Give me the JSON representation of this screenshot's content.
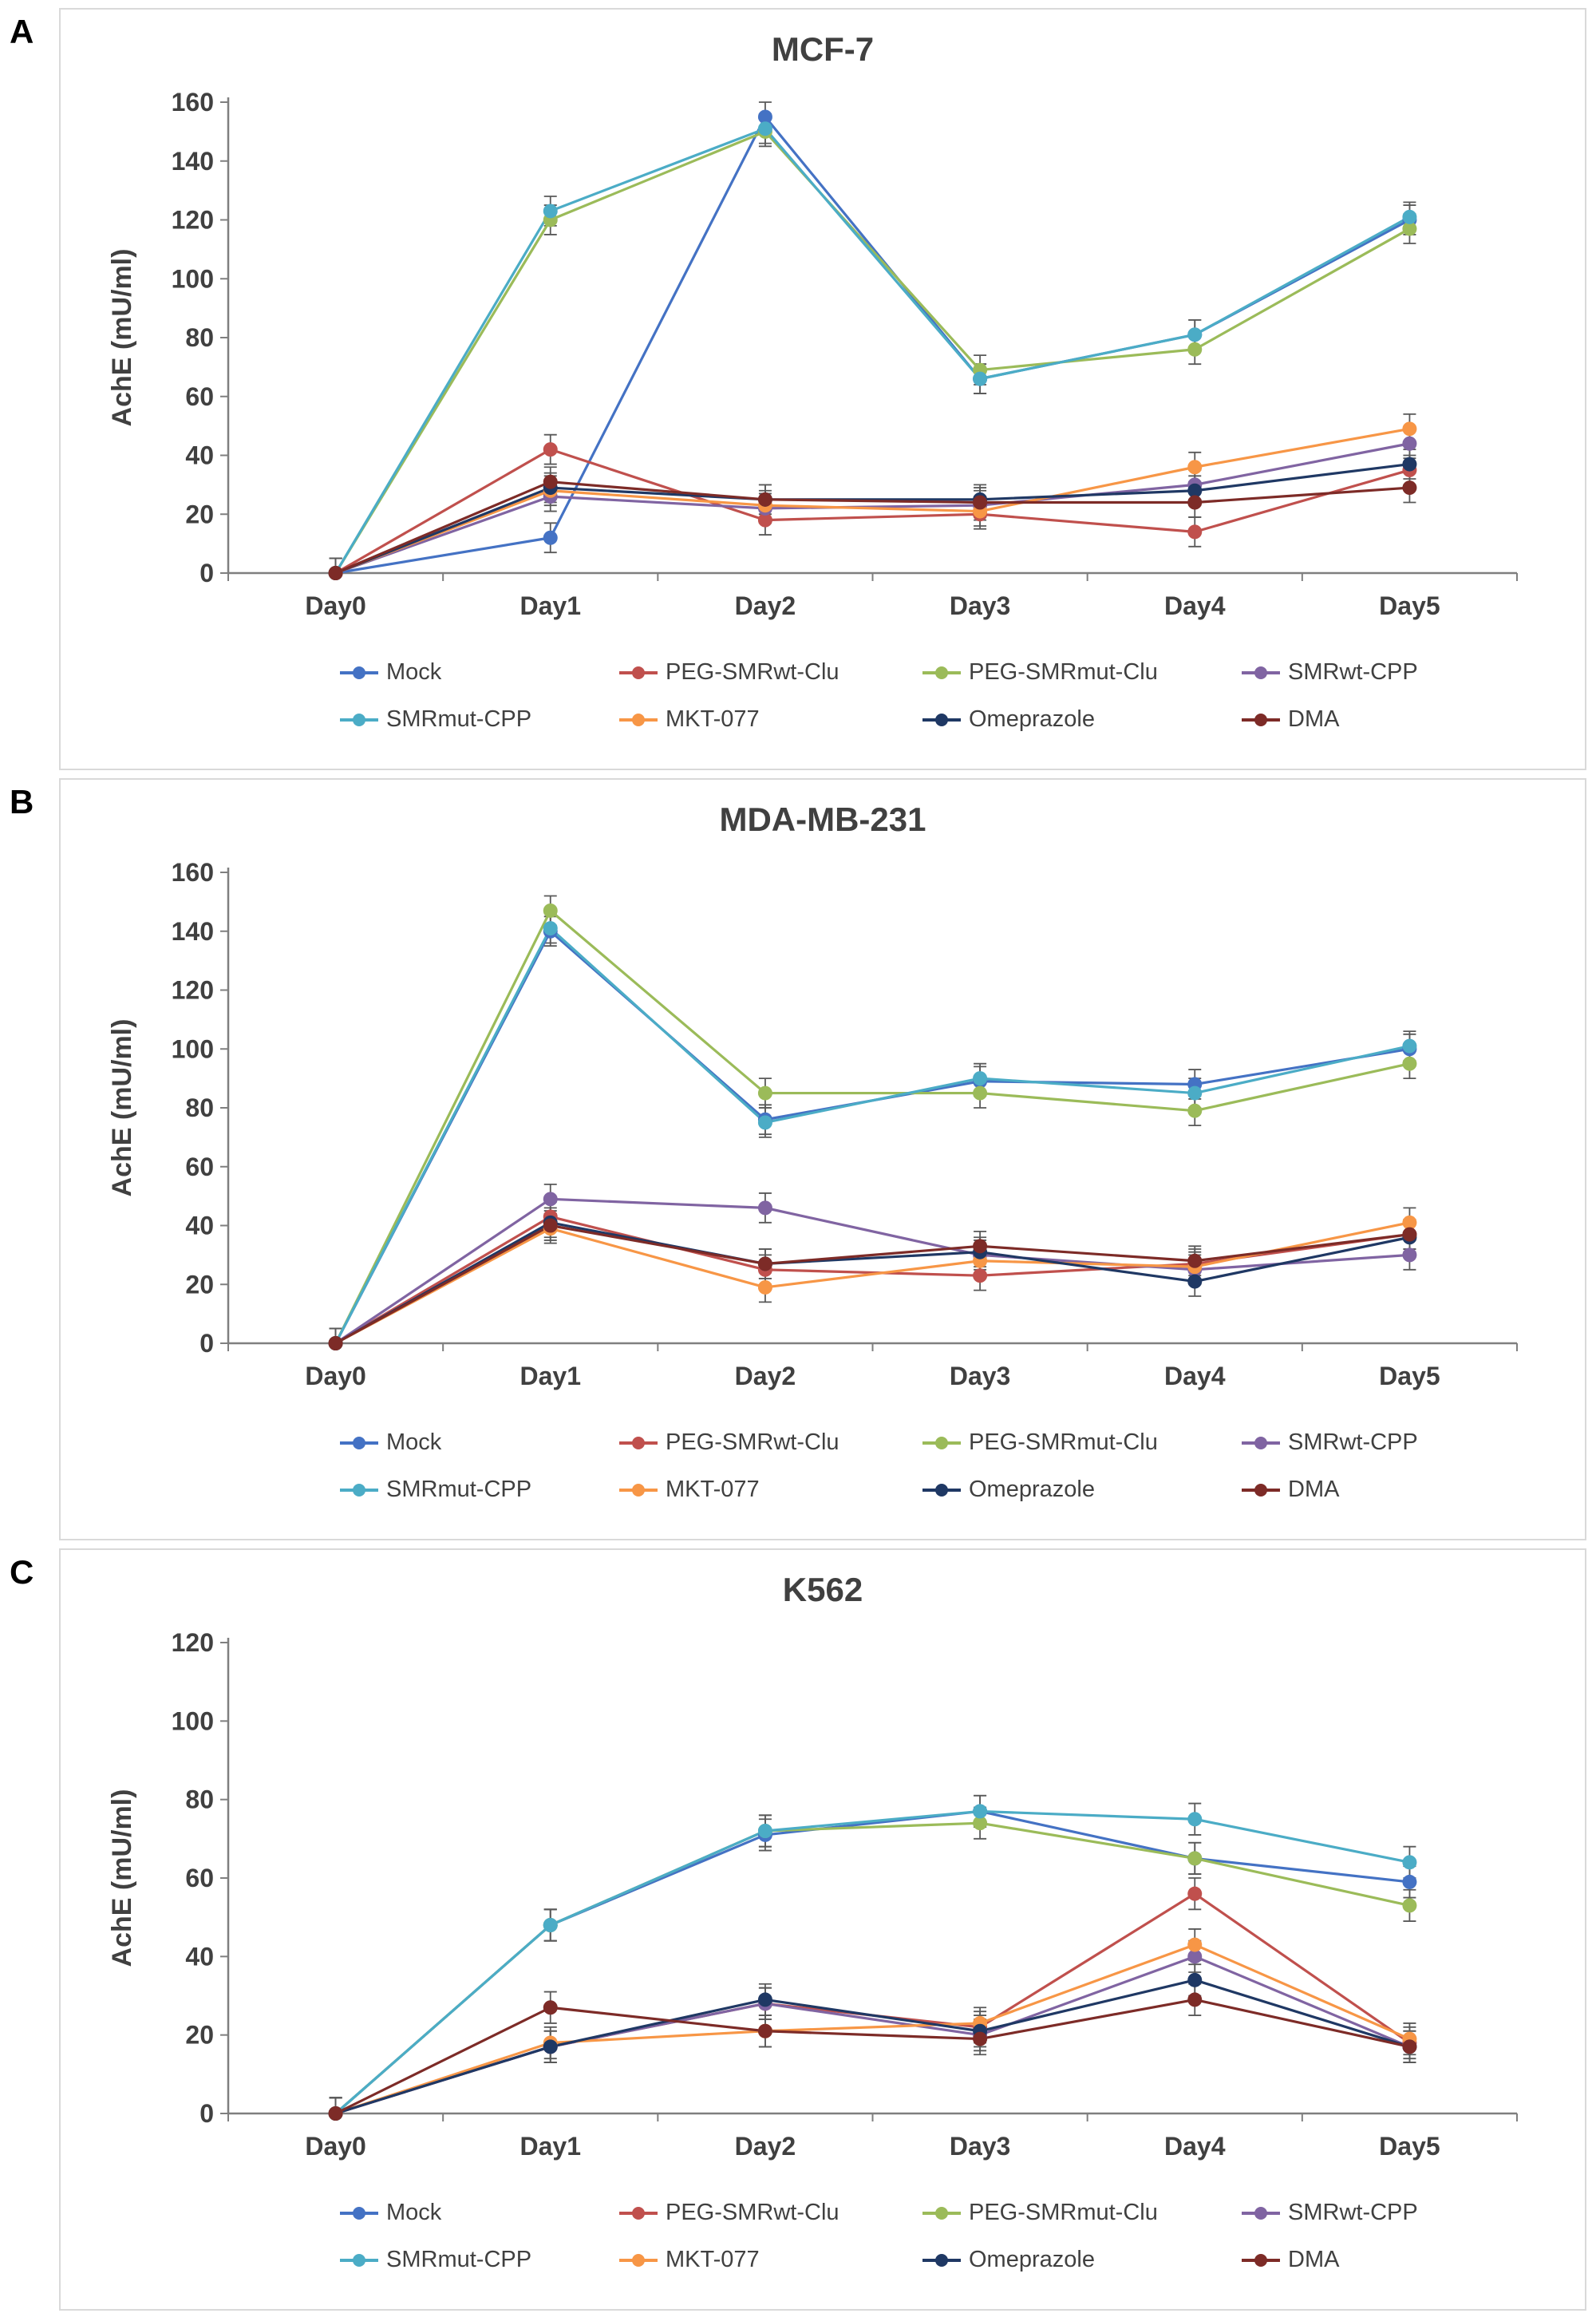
{
  "figure": {
    "panels": [
      {
        "letter": "A",
        "title": "MCF-7"
      },
      {
        "letter": "B",
        "title": "MDA-MB-231"
      },
      {
        "letter": "C",
        "title": "K562"
      }
    ],
    "ylabel": "AchE (mU/ml)",
    "text_color": "#404040",
    "axis_color": "#7f7f7f",
    "error_bar_color": "#595959",
    "panel_border_color": "#d9d9d9"
  },
  "chart_data": [
    {
      "type": "line",
      "title": "MCF-7",
      "xlabel": "",
      "ylabel": "AchE (mU/ml)",
      "categories": [
        "Day0",
        "Day1",
        "Day2",
        "Day3",
        "Day4",
        "Day5"
      ],
      "ylim": [
        0,
        160
      ],
      "ytick_step": 20,
      "grid": false,
      "error_bars": true,
      "error_value": 5,
      "legend_position": "bottom",
      "legend_rows": [
        [
          "Mock",
          "PEG-SMRwt-Clu",
          "PEG-SMRmut-Clu",
          "SMRwt-CPP"
        ],
        [
          "SMRmut-CPP",
          "MKT-077",
          "Omeprazole",
          "DMA"
        ]
      ],
      "series": [
        {
          "name": "Mock",
          "color": "#4472C4",
          "values": [
            0,
            12,
            155,
            66,
            81,
            120
          ]
        },
        {
          "name": "PEG-SMRwt-Clu",
          "color": "#C0504D",
          "values": [
            0,
            42,
            18,
            20,
            14,
            35
          ]
        },
        {
          "name": "PEG-SMRmut-Clu",
          "color": "#9BBB59",
          "values": [
            0,
            120,
            150,
            69,
            76,
            117
          ]
        },
        {
          "name": "SMRwt-CPP",
          "color": "#8064A2",
          "values": [
            0,
            26,
            22,
            23,
            30,
            44
          ]
        },
        {
          "name": "SMRmut-CPP",
          "color": "#4BACC6",
          "values": [
            0,
            123,
            151,
            66,
            81,
            121
          ]
        },
        {
          "name": "MKT-077",
          "color": "#F79646",
          "values": [
            0,
            28,
            23,
            21,
            36,
            49
          ]
        },
        {
          "name": "Omeprazole",
          "color": "#1F3864",
          "values": [
            0,
            29,
            25,
            25,
            28,
            37
          ]
        },
        {
          "name": "DMA",
          "color": "#7D2B27",
          "values": [
            0,
            31,
            25,
            24,
            24,
            29
          ]
        }
      ]
    },
    {
      "type": "line",
      "title": "MDA-MB-231",
      "xlabel": "",
      "ylabel": "AchE (mU/ml)",
      "categories": [
        "Day0",
        "Day1",
        "Day2",
        "Day3",
        "Day4",
        "Day5"
      ],
      "ylim": [
        0,
        160
      ],
      "ytick_step": 20,
      "grid": false,
      "error_bars": true,
      "error_value": 5,
      "legend_position": "bottom",
      "legend_rows": [
        [
          "Mock",
          "PEG-SMRwt-Clu",
          "PEG-SMRmut-Clu",
          "SMRwt-CPP"
        ],
        [
          "SMRmut-CPP",
          "MKT-077",
          "Omeprazole",
          "DMA"
        ]
      ],
      "series": [
        {
          "name": "Mock",
          "color": "#4472C4",
          "values": [
            0,
            140,
            76,
            89,
            88,
            100
          ]
        },
        {
          "name": "PEG-SMRwt-Clu",
          "color": "#C0504D",
          "values": [
            0,
            43,
            25,
            23,
            27,
            37
          ]
        },
        {
          "name": "PEG-SMRmut-Clu",
          "color": "#9BBB59",
          "values": [
            0,
            147,
            85,
            85,
            79,
            95
          ]
        },
        {
          "name": "SMRwt-CPP",
          "color": "#8064A2",
          "values": [
            0,
            49,
            46,
            30,
            25,
            30
          ]
        },
        {
          "name": "SMRmut-CPP",
          "color": "#4BACC6",
          "values": [
            0,
            141,
            75,
            90,
            85,
            101
          ]
        },
        {
          "name": "MKT-077",
          "color": "#F79646",
          "values": [
            0,
            39,
            19,
            28,
            26,
            41
          ]
        },
        {
          "name": "Omeprazole",
          "color": "#1F3864",
          "values": [
            0,
            41,
            27,
            31,
            21,
            36
          ]
        },
        {
          "name": "DMA",
          "color": "#7D2B27",
          "values": [
            0,
            40,
            27,
            33,
            28,
            37
          ]
        }
      ]
    },
    {
      "type": "line",
      "title": "K562",
      "xlabel": "",
      "ylabel": "AchE (mU/ml)",
      "categories": [
        "Day0",
        "Day1",
        "Day2",
        "Day3",
        "Day4",
        "Day5"
      ],
      "ylim": [
        0,
        120
      ],
      "ytick_step": 20,
      "grid": false,
      "error_bars": true,
      "error_value": 4,
      "legend_position": "bottom",
      "legend_rows": [
        [
          "Mock",
          "PEG-SMRwt-Clu",
          "PEG-SMRmut-Clu",
          "SMRwt-CPP"
        ],
        [
          "SMRmut-CPP",
          "MKT-077",
          "Omeprazole",
          "DMA"
        ]
      ],
      "series": [
        {
          "name": "Mock",
          "color": "#4472C4",
          "values": [
            0,
            48,
            71,
            77,
            65,
            59
          ]
        },
        {
          "name": "PEG-SMRwt-Clu",
          "color": "#C0504D",
          "values": [
            0,
            17,
            28,
            22,
            56,
            18
          ]
        },
        {
          "name": "PEG-SMRmut-Clu",
          "color": "#9BBB59",
          "values": [
            0,
            48,
            72,
            74,
            65,
            53
          ]
        },
        {
          "name": "SMRwt-CPP",
          "color": "#8064A2",
          "values": [
            0,
            17,
            28,
            20,
            40,
            17
          ]
        },
        {
          "name": "SMRmut-CPP",
          "color": "#4BACC6",
          "values": [
            0,
            48,
            72,
            77,
            75,
            64
          ]
        },
        {
          "name": "MKT-077",
          "color": "#F79646",
          "values": [
            0,
            18,
            21,
            23,
            43,
            19
          ]
        },
        {
          "name": "Omeprazole",
          "color": "#1F3864",
          "values": [
            0,
            17,
            29,
            21,
            34,
            17
          ]
        },
        {
          "name": "DMA",
          "color": "#7D2B27",
          "values": [
            0,
            27,
            21,
            19,
            29,
            17
          ]
        }
      ]
    }
  ]
}
